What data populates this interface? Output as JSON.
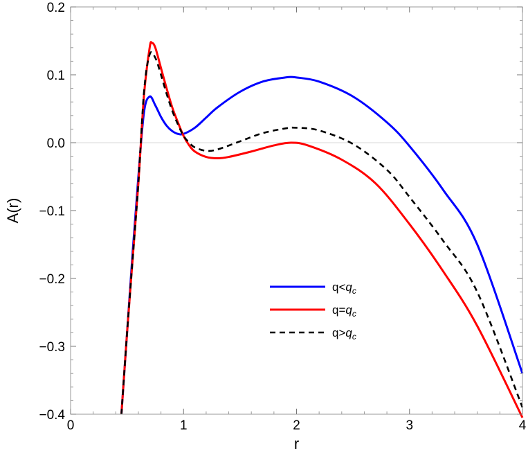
{
  "chart_data": {
    "type": "line",
    "xlabel": "r",
    "ylabel": "A(r)",
    "xlim": [
      0,
      4
    ],
    "ylim": [
      -0.4,
      0.2
    ],
    "x_ticks": [
      "0",
      "1",
      "2",
      "3",
      "4"
    ],
    "y_ticks": [
      "0.2",
      "0.1",
      "0.0",
      "−0.1",
      "−0.2",
      "−0.3",
      "−0.4"
    ],
    "grid": false,
    "zero_line": true,
    "legend_position": "center-right",
    "series": [
      {
        "name": "q<q_c",
        "label_base": "q<",
        "label_sub": "c",
        "color": "#0000ff",
        "dash": "solid",
        "x": [
          0.45,
          0.5,
          0.55,
          0.6,
          0.65,
          0.7,
          0.75,
          0.8,
          0.85,
          0.9,
          0.95,
          1.0,
          1.1,
          1.2,
          1.3,
          1.5,
          1.7,
          1.9,
          2.0,
          2.2,
          2.5,
          2.8,
          3.0,
          3.3,
          3.6,
          4.0
        ],
        "y": [
          -0.4,
          -0.28,
          -0.16,
          -0.05,
          0.045,
          0.068,
          0.055,
          0.038,
          0.025,
          0.017,
          0.013,
          0.013,
          0.022,
          0.037,
          0.052,
          0.075,
          0.09,
          0.096,
          0.096,
          0.09,
          0.068,
          0.03,
          -0.005,
          -0.07,
          -0.15,
          -0.34
        ]
      },
      {
        "name": "q=q_c",
        "label_base": "q=",
        "label_sub": "c",
        "color": "#ff0000",
        "dash": "solid",
        "x": [
          0.45,
          0.5,
          0.55,
          0.6,
          0.65,
          0.7,
          0.72,
          0.75,
          0.8,
          0.85,
          0.9,
          0.95,
          1.0,
          1.05,
          1.1,
          1.2,
          1.3,
          1.4,
          1.6,
          1.8,
          1.95,
          2.1,
          2.4,
          2.7,
          3.0,
          3.3,
          3.6,
          4.0
        ],
        "y": [
          -0.4,
          -0.28,
          -0.17,
          -0.06,
          0.07,
          0.14,
          0.147,
          0.14,
          0.11,
          0.08,
          0.052,
          0.03,
          0.01,
          -0.004,
          -0.013,
          -0.021,
          -0.023,
          -0.021,
          -0.013,
          -0.004,
          0.0,
          -0.004,
          -0.025,
          -0.06,
          -0.12,
          -0.19,
          -0.27,
          -0.405
        ]
      },
      {
        "name": "q>q_c",
        "label_base": "q>",
        "label_sub": "c",
        "color": "#000000",
        "dash": "dashed",
        "x": [
          0.45,
          0.5,
          0.55,
          0.6,
          0.65,
          0.7,
          0.75,
          0.8,
          0.85,
          0.9,
          0.95,
          1.0,
          1.05,
          1.1,
          1.2,
          1.3,
          1.5,
          1.7,
          1.9,
          2.0,
          2.2,
          2.5,
          2.8,
          3.0,
          3.3,
          3.6,
          4.0
        ],
        "y": [
          -0.4,
          -0.28,
          -0.17,
          -0.06,
          0.075,
          0.13,
          0.125,
          0.1,
          0.072,
          0.047,
          0.027,
          0.01,
          0.0,
          -0.007,
          -0.012,
          -0.01,
          0.002,
          0.014,
          0.021,
          0.022,
          0.018,
          -0.002,
          -0.04,
          -0.08,
          -0.145,
          -0.22,
          -0.39
        ]
      }
    ]
  }
}
